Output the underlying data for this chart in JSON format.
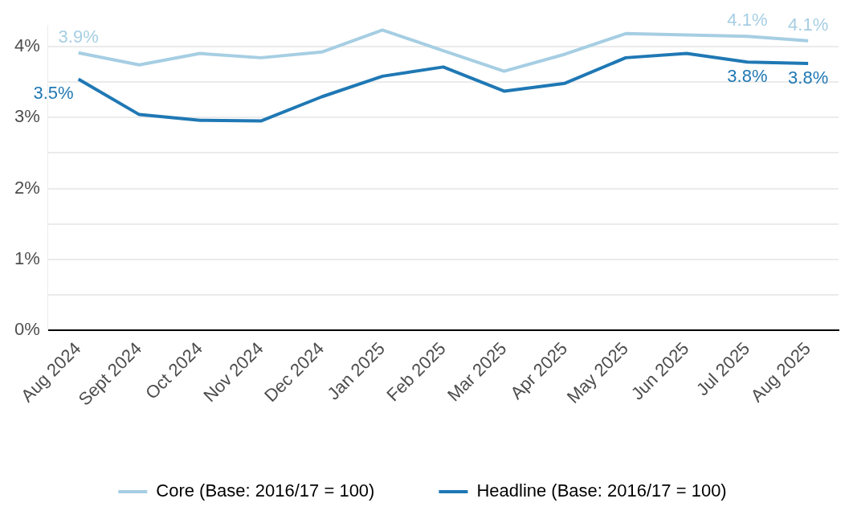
{
  "chart_data": {
    "type": "line",
    "categories": [
      "Aug 2024",
      "Sept 2024",
      "Oct 2024",
      "Nov 2024",
      "Dec 2024",
      "Jan 2025",
      "Feb 2025",
      "Mar 2025",
      "Apr 2025",
      "May 2025",
      "Jun 2025",
      "Jul 2025",
      "Aug 2025"
    ],
    "series": [
      {
        "name": "Core (Base: 2016/17 = 100)",
        "color": "#a6cee3",
        "values": [
          3.91,
          3.74,
          3.9,
          3.84,
          3.92,
          4.23,
          3.94,
          3.65,
          3.89,
          4.18,
          4.16,
          4.14,
          4.08
        ],
        "value_labels": [
          "3.9%",
          null,
          null,
          null,
          null,
          null,
          null,
          null,
          null,
          null,
          null,
          "4.1%",
          "4.1%"
        ]
      },
      {
        "name": "Headline (Base: 2016/17 = 100)",
        "color": "#1f78b4",
        "values": [
          3.54,
          3.04,
          2.96,
          2.95,
          3.29,
          3.58,
          3.71,
          3.37,
          3.48,
          3.84,
          3.9,
          3.78,
          3.76
        ],
        "value_labels": [
          "3.5%",
          null,
          null,
          null,
          null,
          null,
          null,
          null,
          null,
          null,
          null,
          "3.8%",
          "3.8%"
        ]
      }
    ],
    "ylim": [
      0,
      4.3
    ],
    "yticks": [
      {
        "value": 0,
        "label": "0%"
      },
      {
        "value": 0.5,
        "label": null
      },
      {
        "value": 1,
        "label": "1%"
      },
      {
        "value": 1.5,
        "label": null
      },
      {
        "value": 2,
        "label": "2%"
      },
      {
        "value": 2.5,
        "label": null
      },
      {
        "value": 3,
        "label": "3%"
      },
      {
        "value": 3.5,
        "label": null
      },
      {
        "value": 4,
        "label": "4%"
      }
    ],
    "grid": "y",
    "legend": "bottom",
    "marker": "none",
    "line_style": "solid"
  }
}
